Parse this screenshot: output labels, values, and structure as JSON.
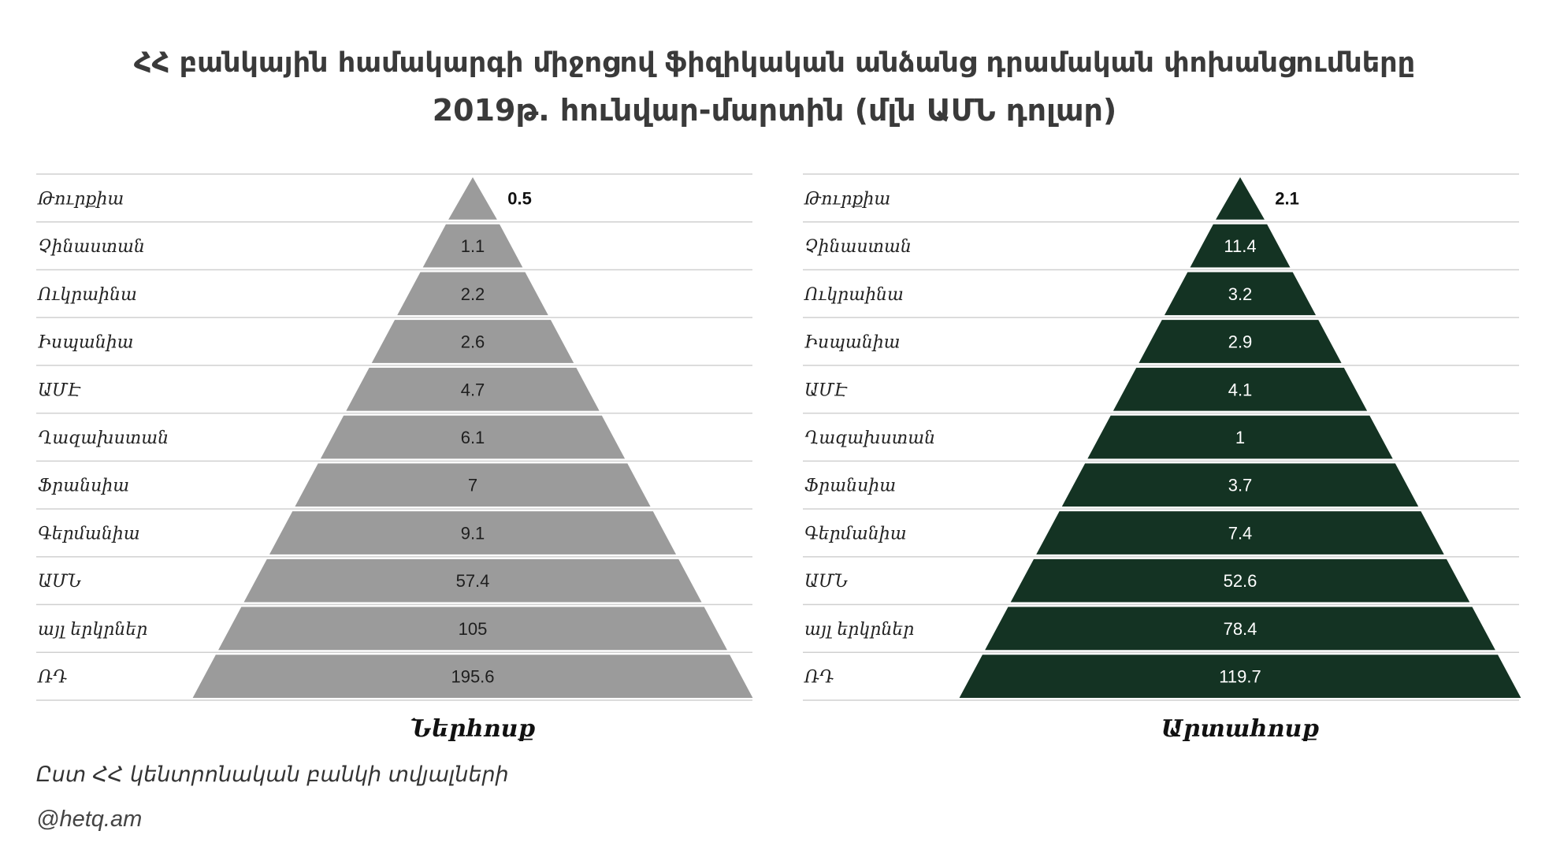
{
  "title": {
    "line1": "ՀՀ բանկային համակարգի միջոցով ֆիզիկական անձանց դրամական փոխանցումները",
    "line2": "2019թ. հունվար-մարտին  (մլն ԱՄՆ  դոլար)"
  },
  "source": "Ըստ ՀՀ կենտրոնական բանկի տվյալների",
  "watermark": "@hetq.am",
  "colors": {
    "inflow": "#9b9b9b",
    "outflow": "#143323",
    "grid": "#d0d0d0"
  },
  "chart_data": [
    {
      "type": "bar",
      "xlabel": "Ներհոսք",
      "categories": [
        "Թուրքիա",
        "Չինաստան",
        "Ուկրաինա",
        "Իսպանիա",
        "ԱՄԷ",
        "Ղազախստան",
        "Ֆրանսիա",
        "Գերմանիա",
        "ԱՄՆ",
        "այլ երկրներ",
        "ՌԴ"
      ],
      "values": [
        0.5,
        1.1,
        2.2,
        2.6,
        4.7,
        6.1,
        7,
        9.1,
        57.4,
        105,
        195.6
      ],
      "value_labels": [
        "0.5",
        "1.1",
        "2.2",
        "2.6",
        "4.7",
        "6.1",
        "7",
        "9.1",
        "57.4",
        "105",
        "195.6"
      ],
      "style": "pyramid"
    },
    {
      "type": "bar",
      "xlabel": "Արտահոսք",
      "categories": [
        "Թուրքիա",
        "Չինաստան",
        "Ուկրաինա",
        "Իսպանիա",
        "ԱՄԷ",
        "Ղազախստան",
        "Ֆրանսիա",
        "Գերմանիա",
        "ԱՄՆ",
        "այլ երկրներ",
        "ՌԴ"
      ],
      "values": [
        2.1,
        11.4,
        3.2,
        2.9,
        4.1,
        1,
        3.7,
        7.4,
        52.6,
        78.4,
        119.7
      ],
      "value_labels": [
        "2.1",
        "11.4",
        "3.2",
        "2.9",
        "4.1",
        "1",
        "3.7",
        "7.4",
        "52.6",
        "78.4",
        "119.7"
      ],
      "style": "pyramid"
    }
  ]
}
